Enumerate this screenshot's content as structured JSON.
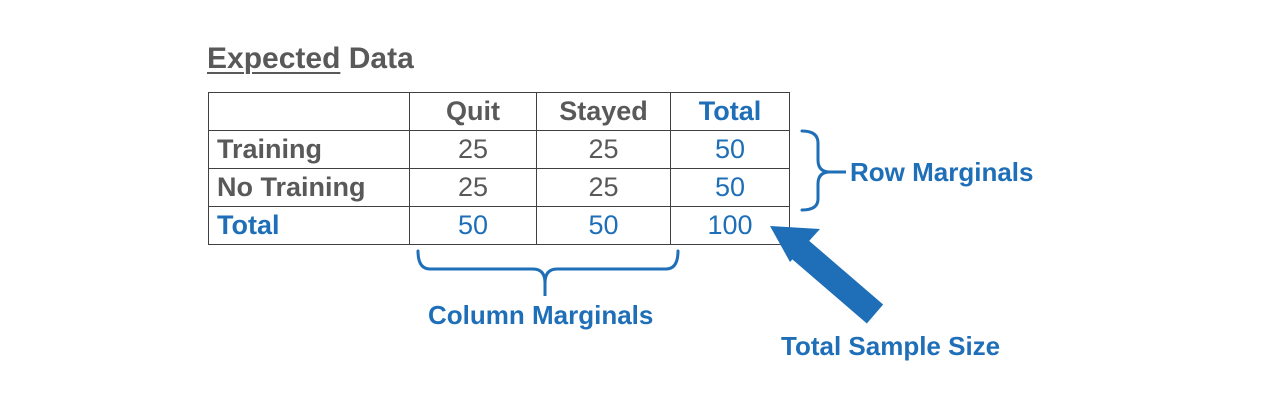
{
  "title": {
    "underlined_word": "Expected",
    "rest": " Data"
  },
  "table": {
    "header": [
      "",
      "Quit",
      "Stayed",
      "Total"
    ],
    "rows": [
      {
        "label": "Training",
        "values": [
          "25",
          "25",
          "50"
        ]
      },
      {
        "label": "No Training",
        "values": [
          "25",
          "25",
          "50"
        ]
      },
      {
        "label": "Total",
        "values": [
          "50",
          "50",
          "100"
        ]
      }
    ]
  },
  "annotations": {
    "row_marginals": "Row Marginals",
    "column_marginals": "Column Marginals",
    "total_sample_size": "Total Sample Size"
  },
  "colors": {
    "accent": "#1f6fb8",
    "text": "#595959",
    "border": "#404040"
  }
}
